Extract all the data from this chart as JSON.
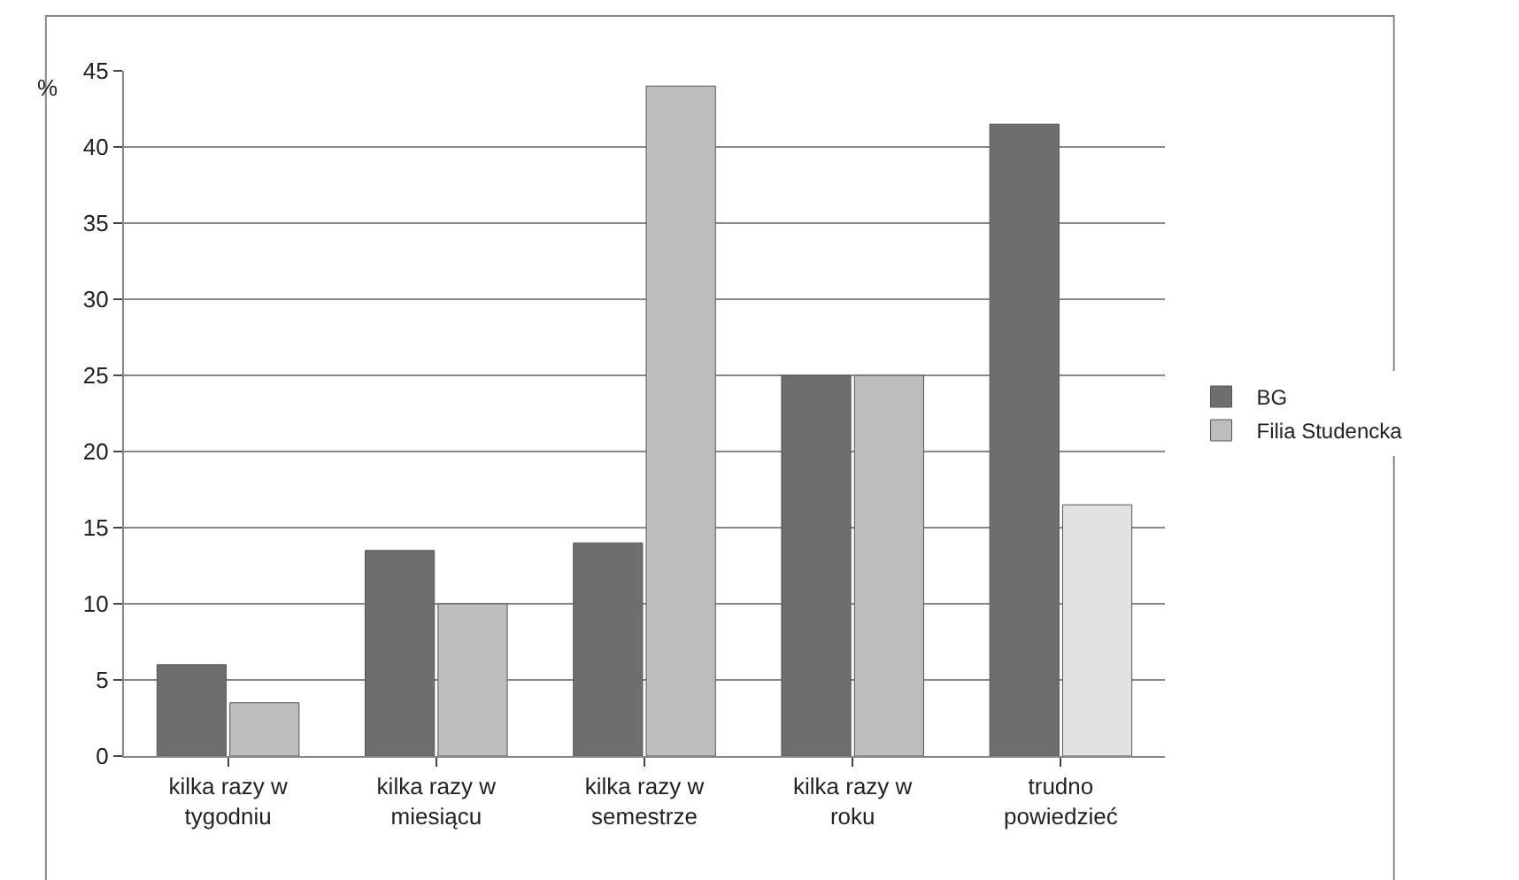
{
  "chart_data": {
    "type": "bar",
    "ylabel": "%",
    "categories": [
      "kilka razy w tygodniu",
      "kilka razy w miesiącu",
      "kilka razy w semestrze",
      "kilka razy w roku",
      "trudno powiedzieć"
    ],
    "series": [
      {
        "name": "BG",
        "color": "#6e6e6e",
        "values": [
          6,
          13.5,
          14,
          25,
          41.5
        ]
      },
      {
        "name": "Filia Studencka",
        "color": "#bdbdbd",
        "colors": [
          "#bdbdbd",
          "#bdbdbd",
          "#bdbdbd",
          "#bdbdbd",
          "#e2e2e2"
        ],
        "values": [
          3.5,
          10,
          44,
          25,
          16.5
        ]
      }
    ],
    "ylim": [
      0,
      45
    ],
    "yticks": [
      0,
      5,
      10,
      15,
      20,
      25,
      30,
      35,
      40,
      45
    ],
    "grid": "y",
    "legend": "right"
  }
}
